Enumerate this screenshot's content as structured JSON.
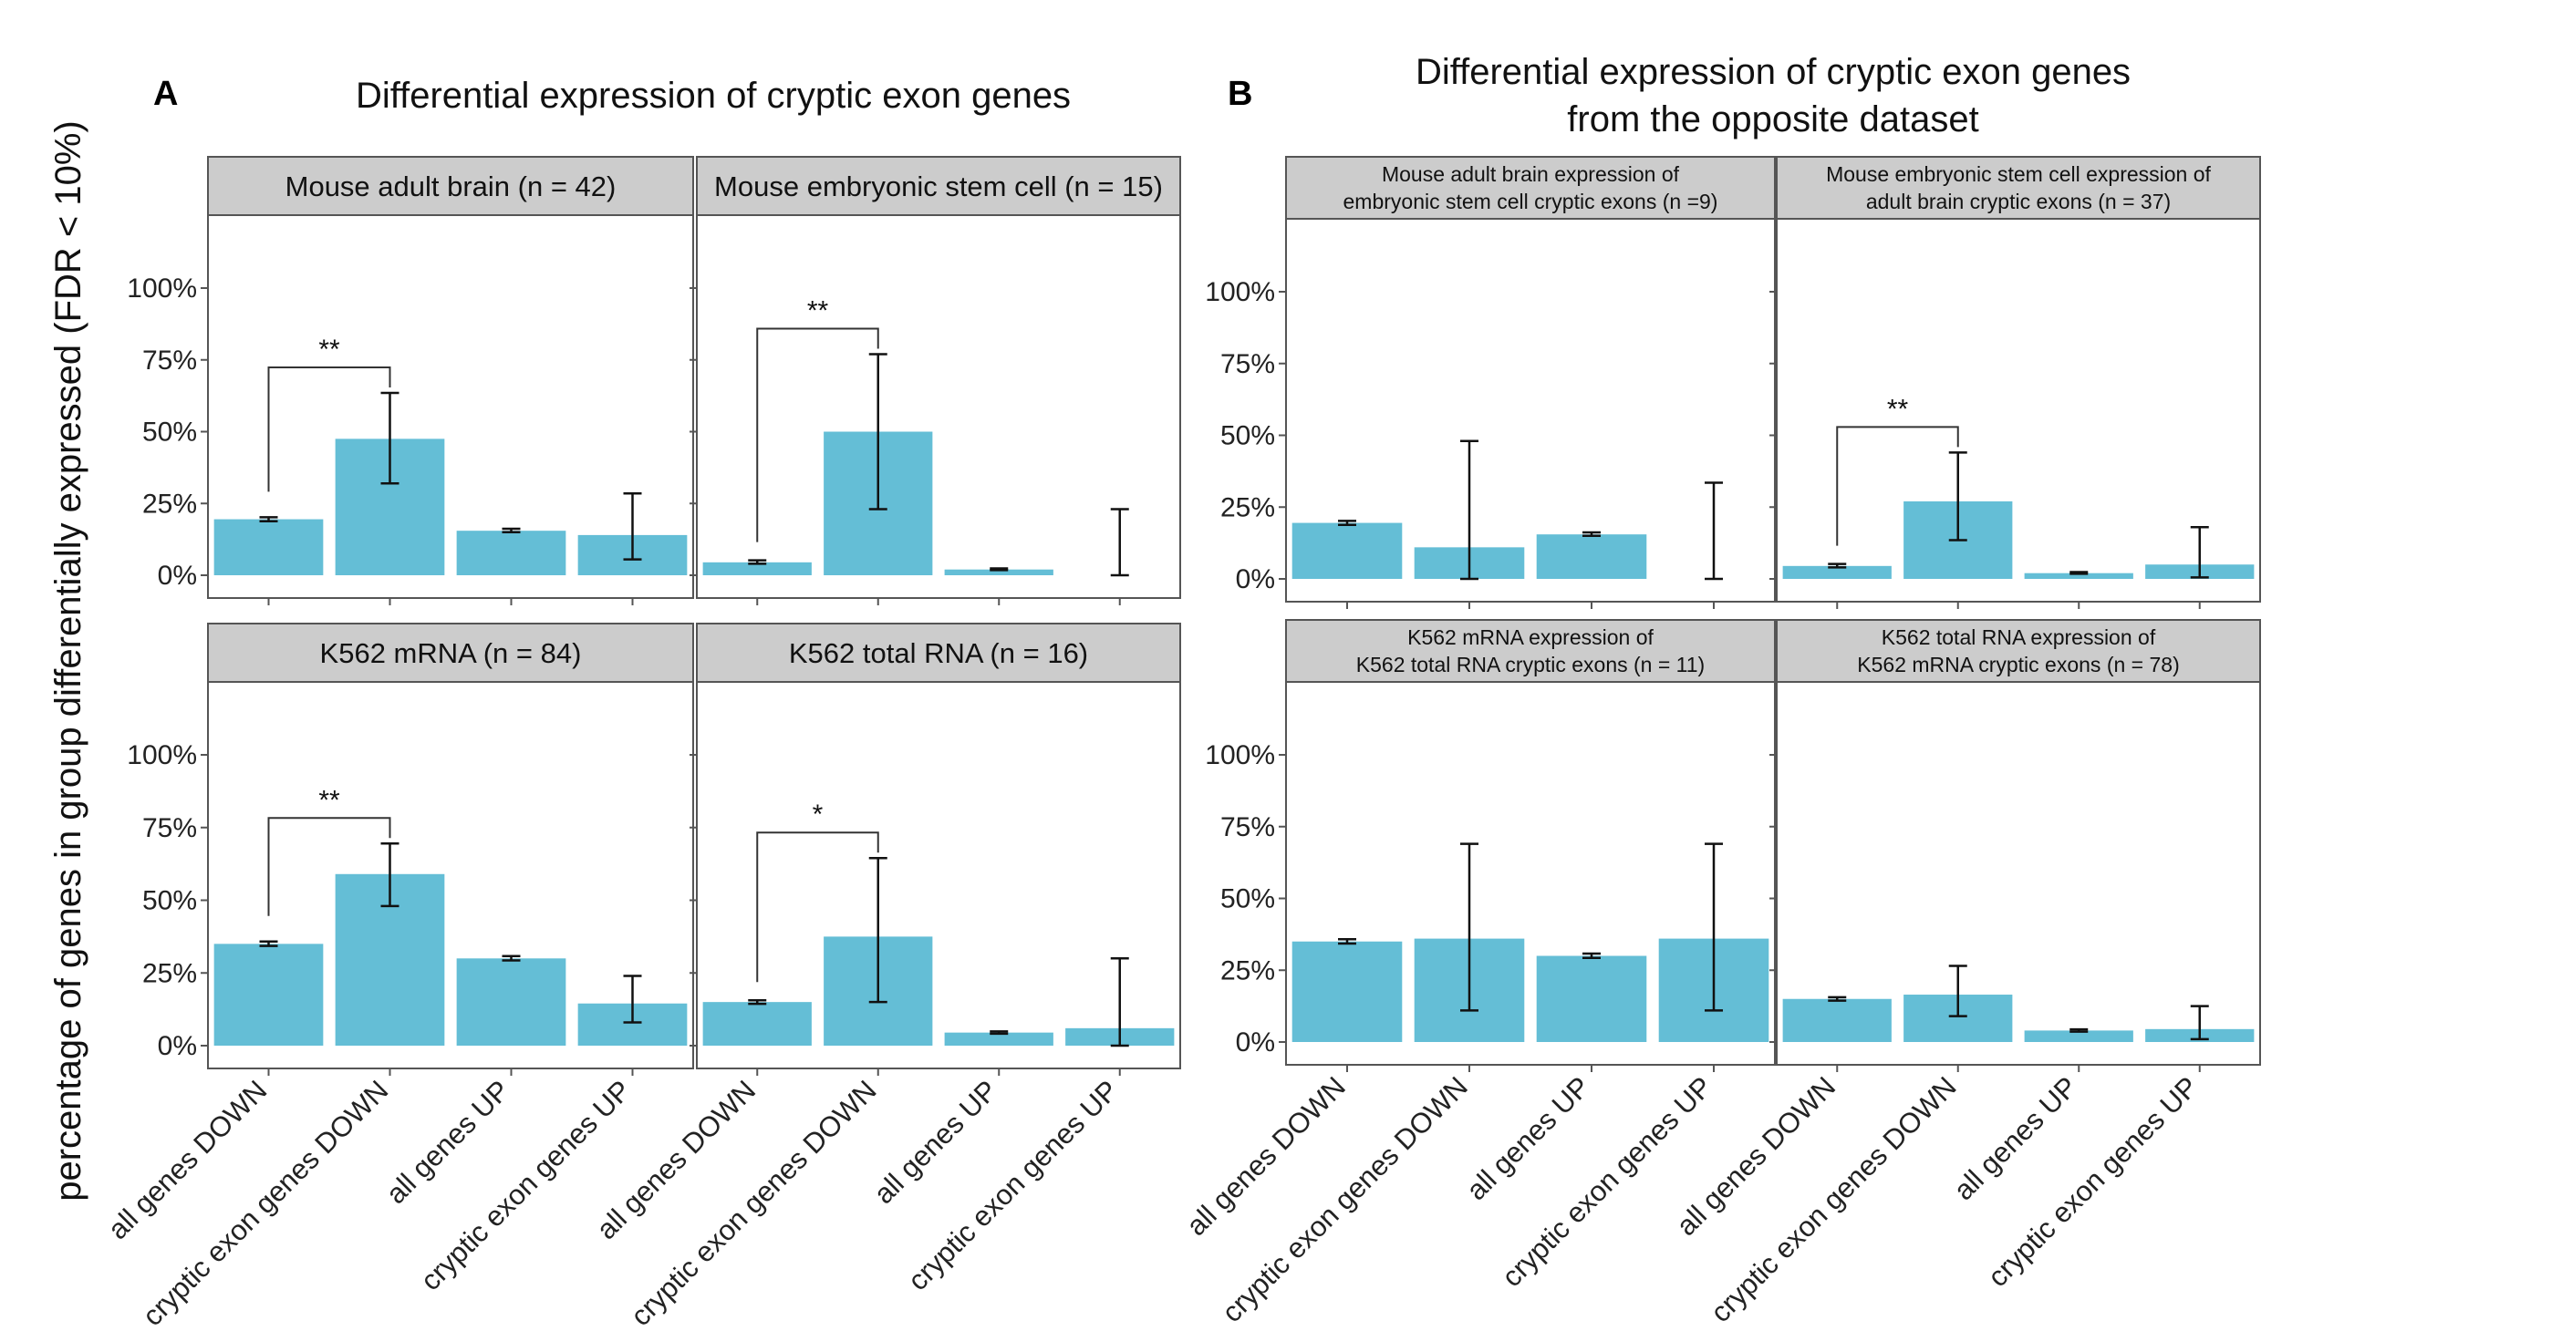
{
  "figure": {
    "letter_a": "A",
    "letter_b": "B",
    "title_a": "Differential expression of cryptic exon genes",
    "title_b_line1": "Differential expression of cryptic exon genes",
    "title_b_line2": "from the opposite dataset",
    "ylabel": "percentage of genes in group differentially expressed (FDR < 10%)",
    "bar_color": "#64bed6",
    "strip_color": "#cccccc"
  },
  "chart_data": [
    {
      "type": "bar",
      "title": "Mouse adult brain (n = 42)",
      "categories": [
        "all genes DOWN",
        "cryptic exon genes DOWN",
        "all genes UP",
        "cryptic exon genes UP"
      ],
      "values": [
        19.5,
        47.5,
        15.5,
        14.0
      ],
      "err_low": [
        18.8,
        32.0,
        15.0,
        5.5
      ],
      "err_high": [
        20.2,
        63.5,
        16.2,
        28.5
      ],
      "ylim": [
        0,
        100
      ],
      "yticks": [
        "0%",
        "25%",
        "50%",
        "75%",
        "100%"
      ],
      "significance": {
        "from": 0,
        "to": 1,
        "label": "**"
      }
    },
    {
      "type": "bar",
      "title": "Mouse embryonic stem cell (n = 15)",
      "categories": [
        "all genes DOWN",
        "cryptic exon genes DOWN",
        "all genes UP",
        "cryptic exon genes UP"
      ],
      "values": [
        4.5,
        50.0,
        2.0,
        0.0
      ],
      "err_low": [
        4.0,
        23.0,
        1.8,
        0.0
      ],
      "err_high": [
        5.2,
        77.0,
        2.4,
        23.0
      ],
      "ylim": [
        0,
        100
      ],
      "yticks": [
        "0%",
        "25%",
        "50%",
        "75%",
        "100%"
      ],
      "significance": {
        "from": 0,
        "to": 1,
        "label": "**"
      }
    },
    {
      "type": "bar",
      "title": "K562 mRNA (n = 84)",
      "categories": [
        "all genes DOWN",
        "cryptic exon genes DOWN",
        "all genes UP",
        "cryptic exon genes UP"
      ],
      "values": [
        35.0,
        59.0,
        30.0,
        14.5
      ],
      "err_low": [
        34.3,
        48.0,
        29.3,
        8.0
      ],
      "err_high": [
        35.8,
        69.5,
        30.8,
        24.0
      ],
      "ylim": [
        0,
        100
      ],
      "yticks": [
        "0%",
        "25%",
        "50%",
        "75%",
        "100%"
      ],
      "significance": {
        "from": 0,
        "to": 1,
        "label": "**"
      }
    },
    {
      "type": "bar",
      "title": "K562 total RNA (n = 16)",
      "categories": [
        "all genes DOWN",
        "cryptic exon genes DOWN",
        "all genes UP",
        "cryptic exon genes UP"
      ],
      "values": [
        15.0,
        37.5,
        4.5,
        6.0
      ],
      "err_low": [
        14.4,
        15.0,
        4.1,
        0.0
      ],
      "err_high": [
        15.6,
        64.5,
        4.9,
        30.0
      ],
      "ylim": [
        0,
        100
      ],
      "yticks": [
        "0%",
        "25%",
        "50%",
        "75%",
        "100%"
      ],
      "significance": {
        "from": 0,
        "to": 1,
        "label": "*"
      }
    },
    {
      "type": "bar",
      "title": "Mouse adult brain expression of\nembryonic stem cell cryptic exons (n =9)",
      "categories": [
        "all genes DOWN",
        "cryptic exon genes DOWN",
        "all genes UP",
        "cryptic exon genes UP"
      ],
      "values": [
        19.5,
        11.0,
        15.5,
        0.0
      ],
      "err_low": [
        18.8,
        0.0,
        15.0,
        0.0
      ],
      "err_high": [
        20.2,
        48.0,
        16.2,
        33.5
      ],
      "ylim": [
        0,
        100
      ],
      "yticks": [
        "0%",
        "25%",
        "50%",
        "75%",
        "100%"
      ],
      "significance": null
    },
    {
      "type": "bar",
      "title": "Mouse embryonic stem cell expression of\nadult brain cryptic exons (n = 37)",
      "categories": [
        "all genes DOWN",
        "cryptic exon genes DOWN",
        "all genes UP",
        "cryptic exon genes UP"
      ],
      "values": [
        4.5,
        27.0,
        2.0,
        5.0
      ],
      "err_low": [
        4.0,
        13.5,
        1.8,
        0.5
      ],
      "err_high": [
        5.2,
        44.0,
        2.4,
        18.0
      ],
      "ylim": [
        0,
        100
      ],
      "yticks": [
        "0%",
        "25%",
        "50%",
        "75%",
        "100%"
      ],
      "significance": {
        "from": 0,
        "to": 1,
        "label": "**"
      }
    },
    {
      "type": "bar",
      "title": "K562 mRNA expression of\nK562 total RNA cryptic exons (n = 11)",
      "categories": [
        "all genes DOWN",
        "cryptic exon genes DOWN",
        "all genes UP",
        "cryptic exon genes UP"
      ],
      "values": [
        35.0,
        36.0,
        30.0,
        36.0
      ],
      "err_low": [
        34.3,
        11.0,
        29.3,
        11.0
      ],
      "err_high": [
        35.8,
        69.0,
        30.8,
        69.0
      ],
      "ylim": [
        0,
        100
      ],
      "yticks": [
        "0%",
        "25%",
        "50%",
        "75%",
        "100%"
      ],
      "significance": null
    },
    {
      "type": "bar",
      "title": "K562 total RNA expression of\nK562 mRNA cryptic exons (n = 78)",
      "categories": [
        "all genes DOWN",
        "cryptic exon genes DOWN",
        "all genes UP",
        "cryptic exon genes UP"
      ],
      "values": [
        15.0,
        16.5,
        4.0,
        4.5
      ],
      "err_low": [
        14.4,
        9.0,
        3.6,
        1.0
      ],
      "err_high": [
        15.6,
        26.5,
        4.4,
        12.5
      ],
      "ylim": [
        0,
        100
      ],
      "yticks": [
        "0%",
        "25%",
        "50%",
        "75%",
        "100%"
      ],
      "significance": null
    }
  ]
}
